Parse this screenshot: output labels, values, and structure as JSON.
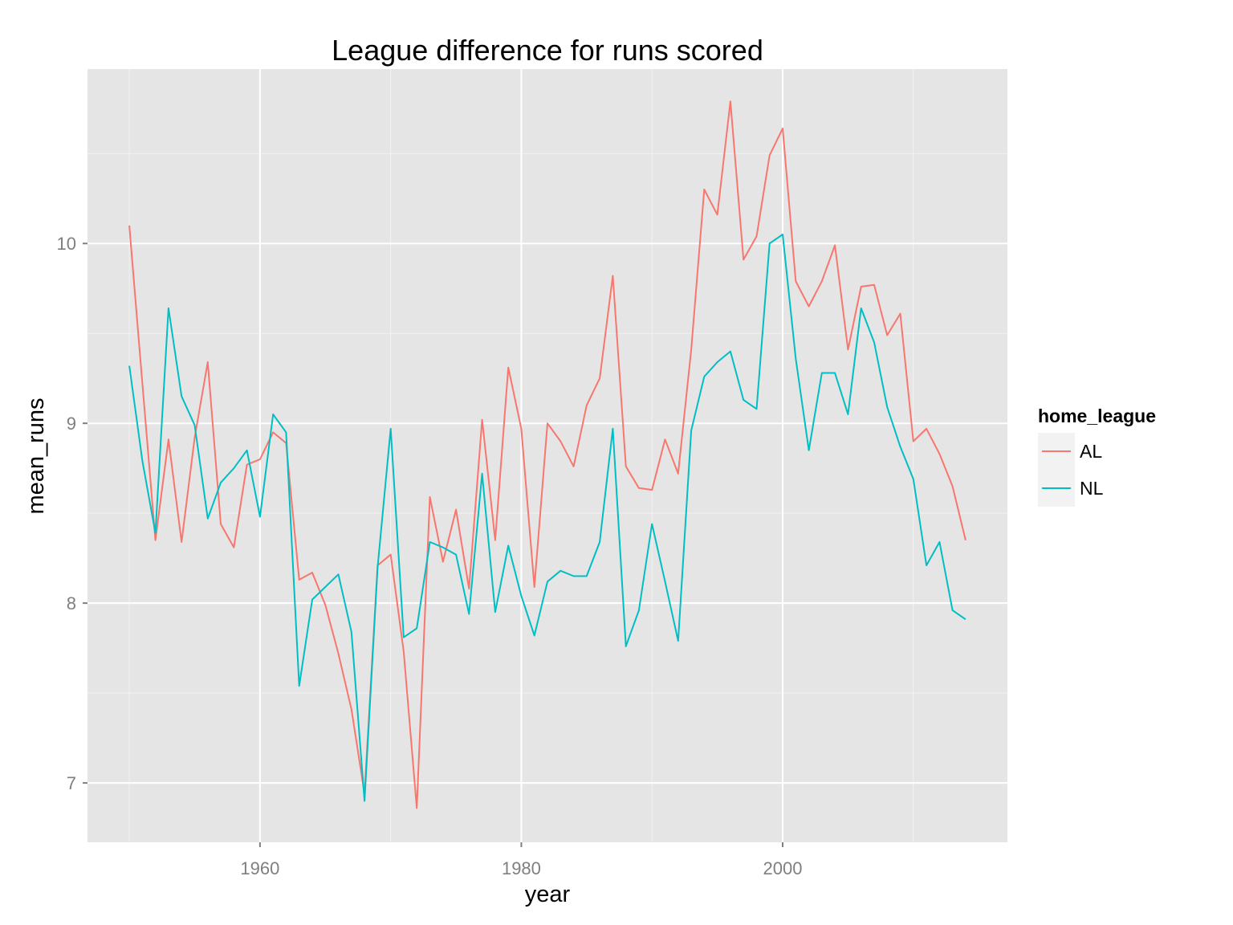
{
  "chart_data": {
    "type": "line",
    "title": "League difference for runs scored",
    "xlabel": "year",
    "ylabel": "mean_runs",
    "xlim": [
      1946.8,
      2017.2
    ],
    "ylim": [
      6.67,
      10.97
    ],
    "x_ticks": [
      1960,
      1980,
      2000
    ],
    "x_tick_labels": [
      "1960",
      "1980",
      "2000"
    ],
    "x_minor_ticks": [
      1950,
      1970,
      1990,
      2010
    ],
    "y_ticks": [
      7,
      8,
      9,
      10
    ],
    "y_tick_labels": [
      "7",
      "8",
      "9",
      "10"
    ],
    "y_minor_ticks": [
      7.5,
      8.5,
      9.5,
      10.5
    ],
    "grid": true,
    "background": "#e5e5e5",
    "grid_major_color": "#ffffff",
    "grid_minor_color": "#f2f2f2",
    "legend": {
      "title": "home_league",
      "position": "right",
      "key_background": "#f2f2f2",
      "items": [
        "AL",
        "NL"
      ]
    },
    "x": [
      1950,
      1951,
      1952,
      1953,
      1954,
      1955,
      1956,
      1957,
      1958,
      1959,
      1960,
      1961,
      1962,
      1963,
      1964,
      1965,
      1966,
      1967,
      1968,
      1969,
      1970,
      1971,
      1972,
      1973,
      1974,
      1975,
      1976,
      1977,
      1978,
      1979,
      1980,
      1981,
      1982,
      1983,
      1984,
      1985,
      1986,
      1987,
      1988,
      1989,
      1990,
      1991,
      1992,
      1993,
      1994,
      1995,
      1996,
      1997,
      1998,
      1999,
      2000,
      2001,
      2002,
      2003,
      2004,
      2005,
      2006,
      2007,
      2008,
      2009,
      2010,
      2011,
      2012,
      2013,
      2014
    ],
    "series": [
      {
        "name": "AL",
        "color": "#f8766d",
        "values": [
          10.1,
          9.22,
          8.35,
          8.91,
          8.34,
          8.92,
          9.34,
          8.44,
          8.31,
          8.77,
          8.8,
          8.95,
          8.89,
          8.13,
          8.17,
          7.99,
          7.72,
          7.41,
          6.94,
          8.21,
          8.27,
          7.73,
          6.86,
          8.59,
          8.23,
          8.52,
          8.08,
          9.02,
          8.35,
          9.31,
          8.97,
          8.09,
          9.0,
          8.9,
          8.76,
          9.1,
          9.25,
          9.82,
          8.76,
          8.64,
          8.63,
          8.91,
          8.72,
          9.41,
          10.3,
          10.16,
          10.79,
          9.91,
          10.04,
          10.49,
          10.64,
          9.79,
          9.65,
          9.79,
          9.99,
          9.41,
          9.76,
          9.77,
          9.49,
          9.61,
          8.9,
          8.97,
          8.83,
          8.65,
          8.35
        ]
      },
      {
        "name": "NL",
        "color": "#00bfc4",
        "values": [
          9.32,
          8.79,
          8.39,
          9.64,
          9.15,
          8.99,
          8.47,
          8.67,
          8.75,
          8.85,
          8.48,
          9.05,
          8.95,
          7.54,
          8.02,
          8.09,
          8.16,
          7.84,
          6.9,
          8.2,
          8.97,
          7.81,
          7.86,
          8.34,
          8.31,
          8.27,
          7.94,
          8.72,
          7.95,
          8.32,
          8.04,
          7.82,
          8.12,
          8.18,
          8.15,
          8.15,
          8.34,
          8.97,
          7.76,
          7.96,
          8.44,
          8.12,
          7.79,
          8.96,
          9.26,
          9.34,
          9.4,
          9.13,
          9.08,
          10.0,
          10.05,
          9.36,
          8.85,
          9.28,
          9.28,
          9.05,
          9.64,
          9.45,
          9.09,
          8.87,
          8.69,
          8.21,
          8.34,
          7.96,
          7.91
        ]
      }
    ]
  }
}
